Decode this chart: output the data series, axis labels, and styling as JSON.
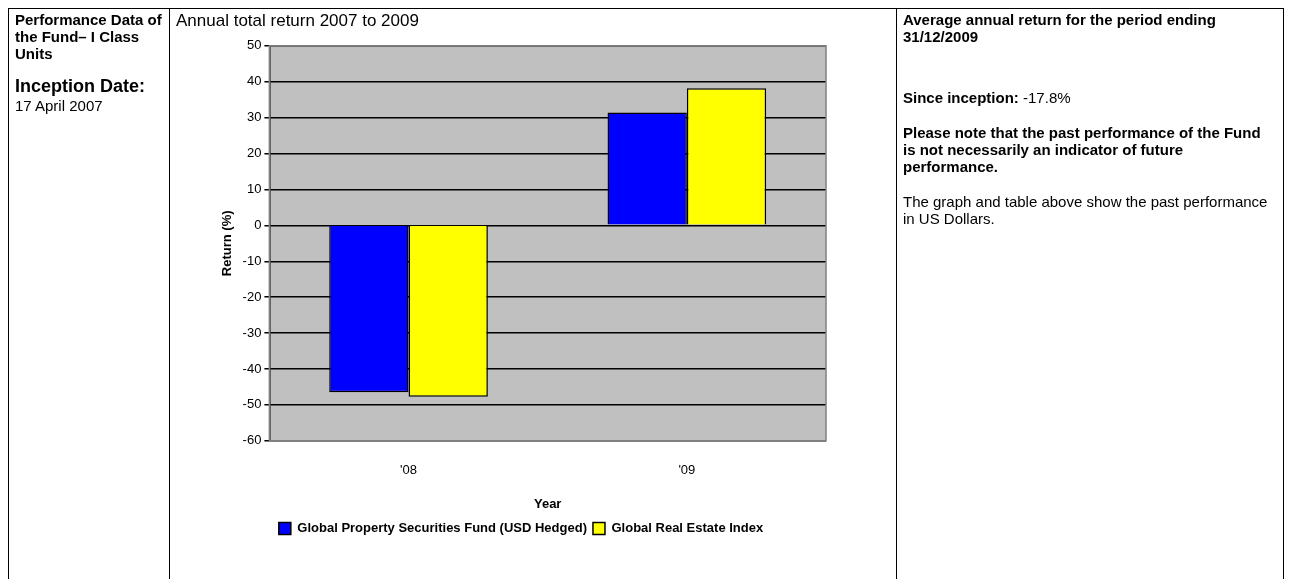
{
  "chart_data": {
    "type": "bar",
    "title": "Annual total return 2007 to 2009",
    "xlabel": "Year",
    "ylabel": "Return (%)",
    "categories": [
      "'08",
      "'09"
    ],
    "series": [
      {
        "name": "Global Property Securities Fund (USD Hedged)",
        "color": "#0000ff",
        "values": [
          -46.5,
          31.4
        ]
      },
      {
        "name": "Global Real Estate Index",
        "color": "#ffff00",
        "values": [
          -47.7,
          38.2
        ]
      }
    ],
    "ylim": [
      -60,
      50
    ],
    "yticks": [
      -60,
      -50,
      -40,
      -30,
      -20,
      -10,
      0,
      10,
      20,
      30,
      40,
      50
    ],
    "grid": "y",
    "legend": "bottom",
    "annotations": [
      "Performance Data of the Fund– I Class Units",
      "Inception Date:",
      "17 April 2007",
      "Average annual return for the period ending 31/12/2009",
      "Since inception:",
      "-17.8%",
      "Please note that the past performance of the Fund is not necessarily an indicator of future performance.",
      "The graph and table above show the past performance in US Dollars."
    ]
  }
}
